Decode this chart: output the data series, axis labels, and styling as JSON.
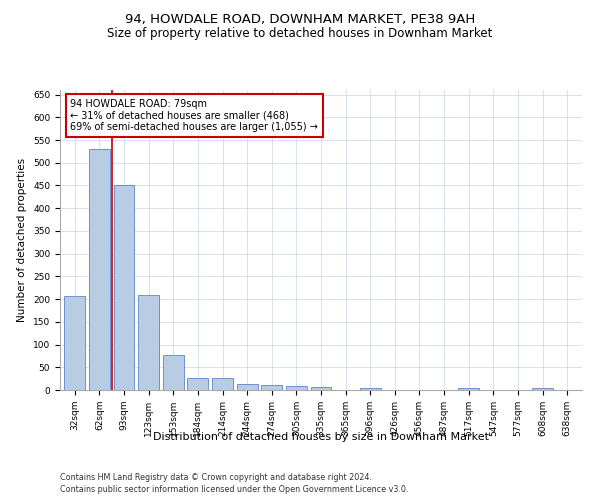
{
  "title1": "94, HOWDALE ROAD, DOWNHAM MARKET, PE38 9AH",
  "title2": "Size of property relative to detached houses in Downham Market",
  "xlabel": "Distribution of detached houses by size in Downham Market",
  "ylabel": "Number of detached properties",
  "categories": [
    "32sqm",
    "62sqm",
    "93sqm",
    "123sqm",
    "153sqm",
    "184sqm",
    "214sqm",
    "244sqm",
    "274sqm",
    "305sqm",
    "335sqm",
    "365sqm",
    "396sqm",
    "426sqm",
    "456sqm",
    "487sqm",
    "517sqm",
    "547sqm",
    "577sqm",
    "608sqm",
    "638sqm"
  ],
  "values": [
    207,
    530,
    450,
    210,
    76,
    26,
    26,
    14,
    11,
    8,
    7,
    0,
    5,
    0,
    0,
    0,
    4,
    0,
    0,
    4,
    0
  ],
  "bar_color": "#b8cce4",
  "bar_edge_color": "#4472c4",
  "vline_x": 1.5,
  "vline_color": "#cc0000",
  "annotation_text": "94 HOWDALE ROAD: 79sqm\n← 31% of detached houses are smaller (468)\n69% of semi-detached houses are larger (1,055) →",
  "annotation_box_color": "#ffffff",
  "annotation_box_edge": "#cc0000",
  "ylim": [
    0,
    660
  ],
  "yticks": [
    0,
    50,
    100,
    150,
    200,
    250,
    300,
    350,
    400,
    450,
    500,
    550,
    600,
    650
  ],
  "footer1": "Contains HM Land Registry data © Crown copyright and database right 2024.",
  "footer2": "Contains public sector information licensed under the Open Government Licence v3.0.",
  "bg_color": "#ffffff",
  "grid_color": "#c8d4e8",
  "title1_fontsize": 9.5,
  "title2_fontsize": 8.5,
  "tick_fontsize": 6.5,
  "ylabel_fontsize": 7.5,
  "xlabel_fontsize": 8.0,
  "footer_fontsize": 5.8,
  "annotation_fontsize": 7.0
}
